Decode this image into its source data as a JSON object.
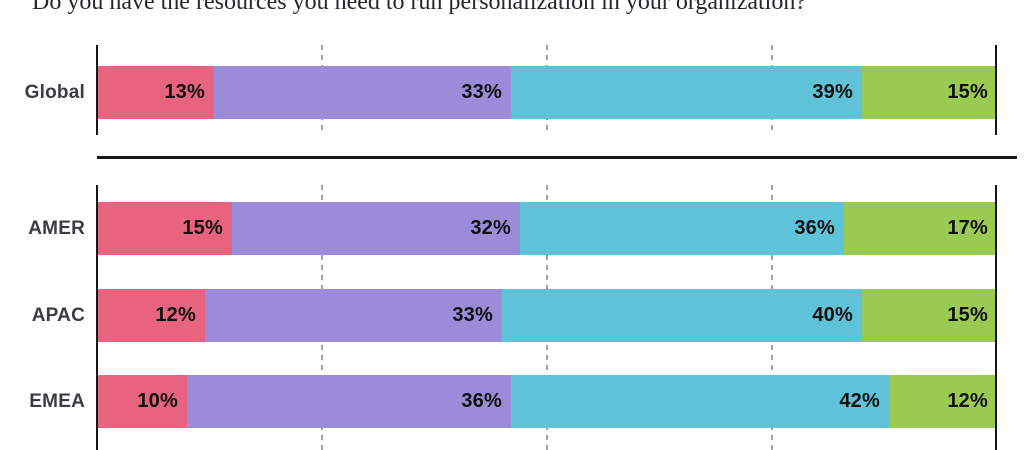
{
  "title": "Do you have the resources you need to run personalization in your organization?",
  "chart_data": {
    "type": "bar",
    "orientation": "horizontal",
    "stacked": true,
    "unit": "%",
    "x_axis": {
      "min": 0,
      "max": 100,
      "gridlines_percent": [
        25,
        50,
        75
      ],
      "gridline_style": "dashed",
      "start_end_axis_style": "solid"
    },
    "segment_colors": [
      "#e8637f",
      "#9a8cd8",
      "#5ec2d8",
      "#9aca52"
    ],
    "rows": [
      {
        "label": "Global",
        "values": [
          13,
          33,
          39,
          15
        ]
      },
      {
        "label": "AMER",
        "values": [
          15,
          32,
          36,
          17
        ]
      },
      {
        "label": "APAC",
        "values": [
          12,
          33,
          40,
          15
        ]
      },
      {
        "label": "EMEA",
        "values": [
          10,
          36,
          42,
          12
        ]
      }
    ],
    "groups": [
      [
        "Global"
      ],
      [
        "AMER",
        "APAC",
        "EMEA"
      ]
    ],
    "legend": null,
    "value_labels": "inside-right",
    "colors": {
      "axis": "#17171a",
      "gridline": "#a3a3a3",
      "value_label_text": "#101010",
      "row_label_text": "#3b3c46",
      "title_text": "#26262b",
      "background": "#ffffff"
    }
  }
}
